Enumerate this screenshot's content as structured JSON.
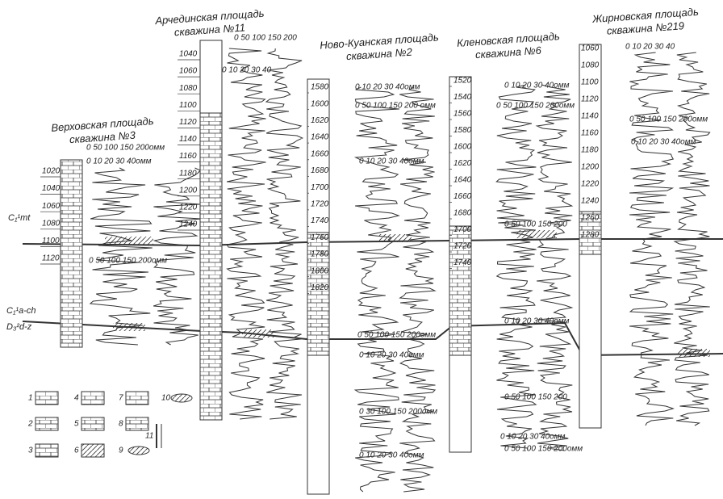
{
  "wells": [
    {
      "title": "Верховская площадь",
      "subtitle": "скважина №3",
      "depths": [
        1020,
        1040,
        1060,
        1080,
        1100,
        1120
      ],
      "scales": [
        "0 50 100 150 200омм",
        "0 10 20 30 40омм",
        "0 50 100 150 200омм"
      ]
    },
    {
      "title": "Арчединская площадь",
      "subtitle": "скважина №11",
      "depths": [
        1040,
        1060,
        1080,
        1100,
        1120,
        1140,
        1160,
        1180,
        1200,
        1220,
        1240
      ],
      "scales": [
        "0 50 100 150 200",
        "0 10 20 30 40"
      ]
    },
    {
      "title": "Ново-Куанская площадь",
      "subtitle": "скважина №2",
      "depths": [
        1580,
        1600,
        1620,
        1640,
        1660,
        1680,
        1700,
        1720,
        1740,
        1760,
        1780,
        1800,
        1820
      ],
      "scales": [
        "0 10 20 30 40омм",
        "0 50 100 150 200 омм",
        "0 10 20 30 40омм",
        "0 50 100 150 200омм",
        "0 10 20 30 40омм",
        "0 30 100 150 200омм",
        "0 10 20 30 40омм"
      ]
    },
    {
      "title": "Кленовская площадь",
      "subtitle": "скважина №6",
      "depths": [
        1520,
        1540,
        1560,
        1580,
        1600,
        1620,
        1640,
        1660,
        1680,
        1700,
        1720,
        1740
      ],
      "scales": [
        "0 10 20 30 40омм",
        "0 50 100 150 200омм",
        "0 50 100 150 200",
        "0 10 20 30 40омм",
        "0 50 100 150 200",
        "0 10 20 30 40омм",
        "0 50 100 150 200омм"
      ]
    },
    {
      "title": "Жирновская площадь",
      "subtitle": "скважина №219",
      "depths": [
        1060,
        1080,
        1100,
        1120,
        1140,
        1160,
        1180,
        1200,
        1220,
        1240,
        1260,
        1280
      ],
      "scales": [
        "0 10 20 30 40",
        "0 50 100 150 200омм",
        "0 10 20 30 40омм"
      ]
    }
  ],
  "horizons": [
    "C₁¹mt",
    "C₁¹a-ch",
    "D₃²d-z"
  ],
  "legend": [
    "1",
    "2",
    "3",
    "4",
    "5",
    "6",
    "7",
    "8",
    "9",
    "10",
    "11"
  ]
}
